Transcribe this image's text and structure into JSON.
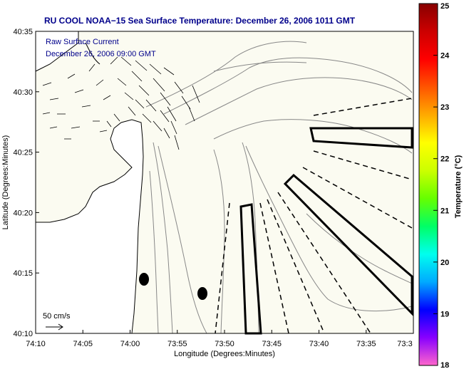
{
  "title": "RU COOL  NOAA−15  Sea Surface Temperature:  December 26, 2006 1011 GMT",
  "legend": {
    "line1": "Raw Surface Current",
    "line2": "December 26, 2006 09:00 GMT"
  },
  "scale": {
    "label": "50 cm/s"
  },
  "axes": {
    "xlabel": "Longitude (Degrees:Minutes)",
    "ylabel": "Latitude (Degrees:Minutes)",
    "xticks": [
      "74:10",
      "74:05",
      "74:00",
      "73:55",
      "73:50",
      "73:45",
      "73:40",
      "73:35",
      "73:3"
    ],
    "yticks": [
      "40:35",
      "40:30",
      "40:25",
      "40:20",
      "40:15",
      "40:10"
    ]
  },
  "colorbar": {
    "label": "Temperature (°C)",
    "ticks": [
      "25",
      "24",
      "23",
      "22",
      "21",
      "20",
      "19",
      "18"
    ],
    "range": [
      18,
      25
    ],
    "stops": [
      "#ff66cc",
      "#8800ff",
      "#0000ff",
      "#00aaff",
      "#00ffee",
      "#00ff66",
      "#66ff00",
      "#ccff00",
      "#ffff00",
      "#ffaa00",
      "#ff5500",
      "#ff0000",
      "#cc0000",
      "#880000"
    ]
  },
  "markers": {
    "count": 2,
    "shape": "filled-ellipse",
    "color": "#000000"
  },
  "colors": {
    "land": "#ffffff",
    "sea": "#fbfbf1",
    "contour": "#888888",
    "coast": "#000000"
  }
}
